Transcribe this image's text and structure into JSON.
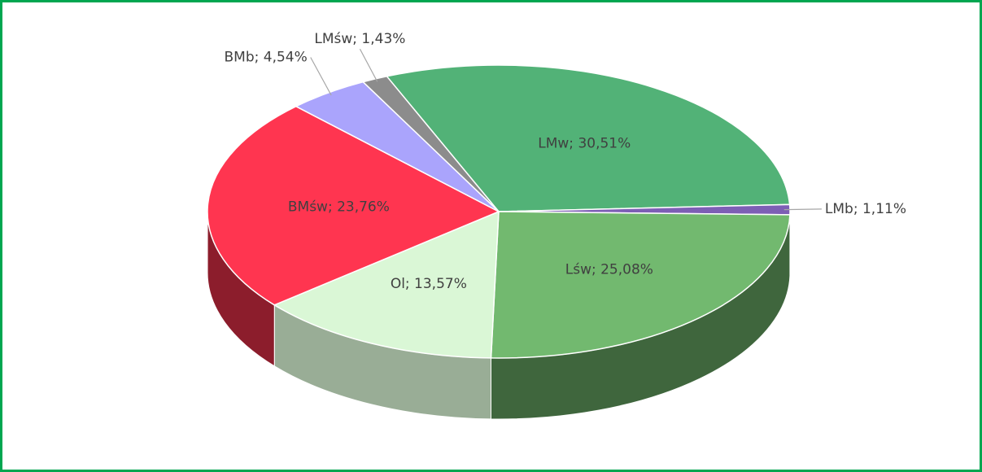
{
  "chart_data": {
    "type": "pie",
    "categories": [
      "LMw",
      "LMb",
      "Lśw",
      "Ol",
      "BMśw",
      "BMb",
      "LMśw"
    ],
    "values": [
      30.51,
      1.11,
      25.08,
      13.57,
      23.76,
      4.54,
      1.43
    ],
    "value_labels": [
      "LMw; 30,51%",
      "LMb; 1,11%",
      "Lśw; 25,08%",
      "Ol; 13,57%",
      "BMśw; 23,76%",
      "BMb; 4,54%",
      "LMśw; 1,43%"
    ],
    "colors": [
      "#52b277",
      "#7d5fb5",
      "#72b96f",
      "#daf7d6",
      "#ff3550",
      "#aaa4fc",
      "#8c8c8c"
    ]
  }
}
